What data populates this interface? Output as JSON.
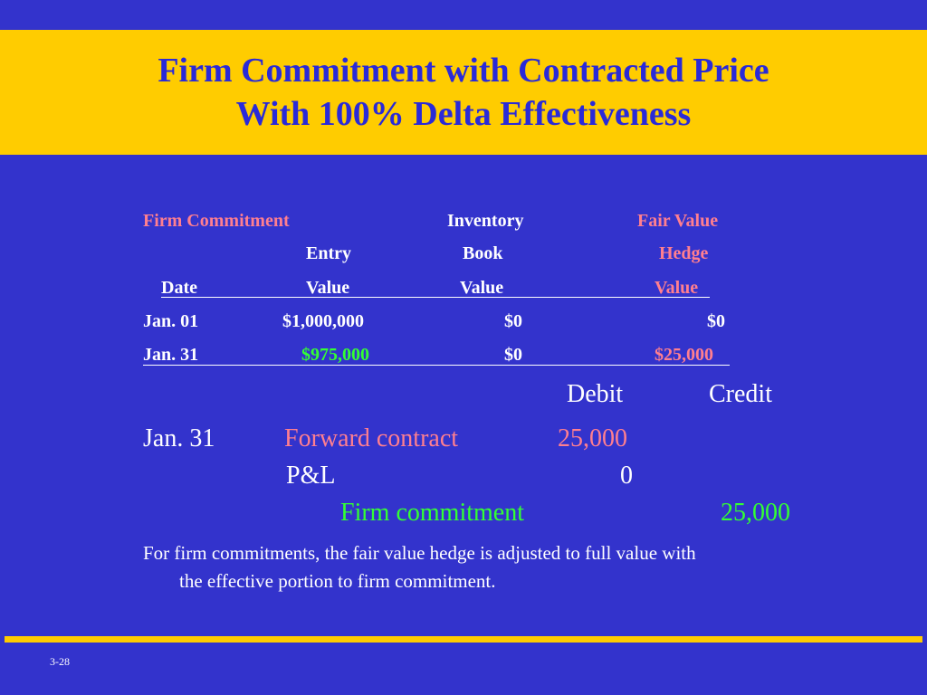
{
  "title": {
    "line1": "Firm Commitment with Contracted Price",
    "line2": "With 100% Delta Effectiveness"
  },
  "table": {
    "headers": {
      "firm_commitment": "Firm Commitment",
      "inventory": "Inventory",
      "fair_value": "Fair Value",
      "entry": "Entry",
      "book": "Book",
      "hedge": "Hedge",
      "date": "Date",
      "entry_value": "Value",
      "book_value": "Value",
      "hedge_value": "Value"
    },
    "rows": [
      {
        "date": "Jan. 01",
        "entry_value": "$1,000,000",
        "book_value": "$0",
        "hedge_value": "$0"
      },
      {
        "date": "Jan. 31",
        "entry_value": "$975,000",
        "book_value": "$0",
        "hedge_value": "$25,000"
      }
    ]
  },
  "journal": {
    "debit_label": "Debit",
    "credit_label": "Credit",
    "date": "Jan. 31",
    "line1_account": "Forward contract",
    "line1_debit": "25,000",
    "line2_account": "P&L",
    "line2_debit": "0",
    "line3_account": "Firm commitment",
    "line3_credit": "25,000"
  },
  "note": {
    "line1": "For firm commitments, the fair value hedge is adjusted to full value with",
    "line2": "the effective portion to firm commitment."
  },
  "slide_number": "3-28",
  "colors": {
    "background": "#3333cc",
    "title_band": "#ffcc00",
    "title_text": "#2a2ad8",
    "pink": "#ff7f8f",
    "green": "#33ff33"
  }
}
